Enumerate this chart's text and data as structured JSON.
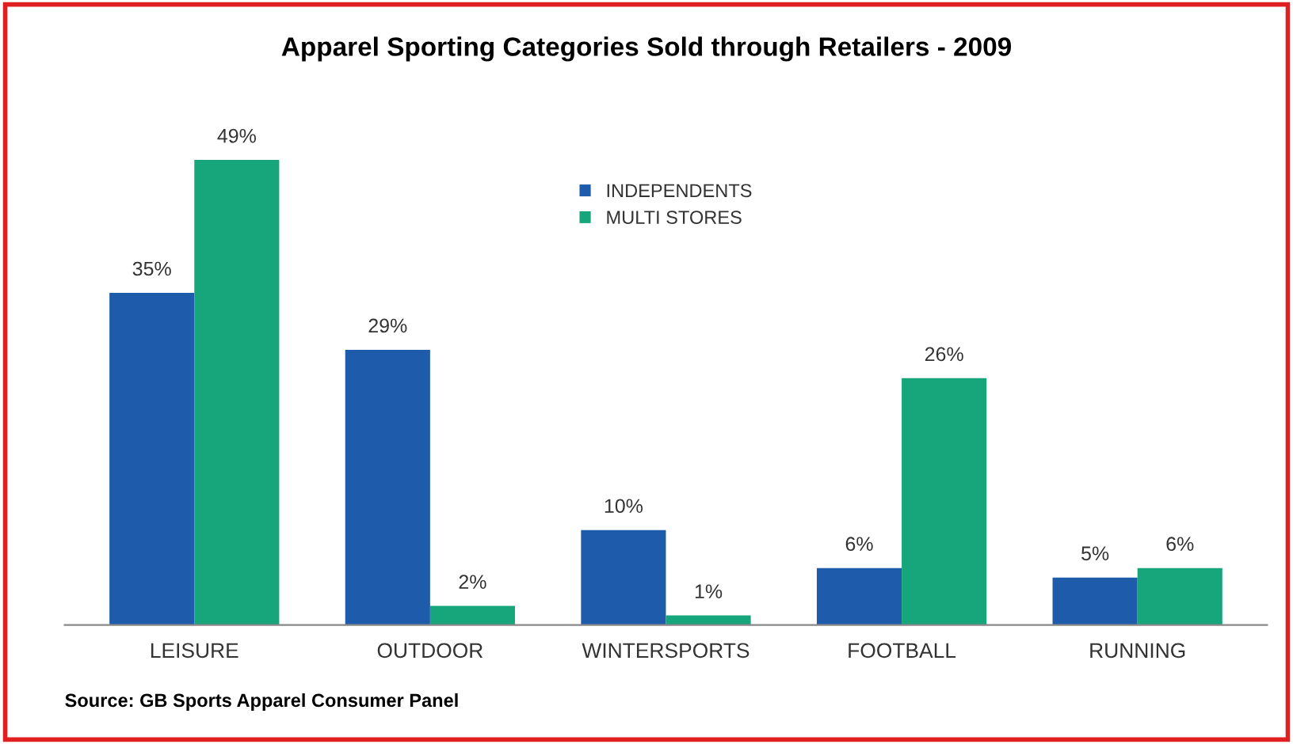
{
  "chart_data": {
    "type": "bar",
    "title": "Apparel Sporting Categories Sold through Retailers - 2009",
    "categories": [
      "LEISURE",
      "OUTDOOR",
      "WINTERSPORTS",
      "FOOTBALL",
      "RUNNING"
    ],
    "series": [
      {
        "name": "INDEPENDENTS",
        "color": "#1f5bab",
        "values": [
          35,
          29,
          10,
          6,
          5
        ],
        "value_labels": [
          "35%",
          "29%",
          "10%",
          "6%",
          "5%"
        ]
      },
      {
        "name": "MULTI STORES",
        "color": "#17a67c",
        "values": [
          49,
          2,
          1,
          26,
          6
        ],
        "value_labels": [
          "49%",
          "2%",
          "1%",
          "26%",
          "6%"
        ]
      }
    ],
    "legend": "top",
    "grid": false,
    "annotations": [
      "Source: GB Sports Apparel Consumer Panel"
    ]
  }
}
